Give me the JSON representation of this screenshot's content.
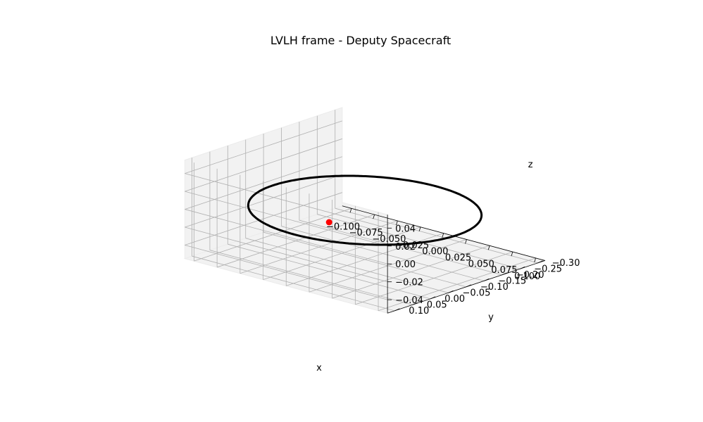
{
  "chart_data": {
    "type": "line",
    "projection": "3d",
    "title": "LVLH frame - Deputy Spacecraft",
    "xlabel": "x",
    "ylabel": "y",
    "zlabel": "z",
    "xlim": [
      -0.11,
      0.11
    ],
    "ylim": [
      -0.32,
      0.12
    ],
    "zlim": [
      -0.055,
      0.055
    ],
    "x_ticks": [
      "−0.100",
      "−0.075",
      "−0.050",
      "−0.025",
      "0.000",
      "0.025",
      "0.050",
      "0.075",
      "0.100"
    ],
    "x_tick_values": [
      -0.1,
      -0.075,
      -0.05,
      -0.025,
      0,
      0.025,
      0.05,
      0.075,
      0.1
    ],
    "y_ticks": [
      "−0.30",
      "−0.25",
      "−0.20",
      "−0.15",
      "−0.10",
      "−0.05",
      "0.00",
      "0.05",
      "0.10"
    ],
    "y_tick_values": [
      -0.3,
      -0.25,
      -0.2,
      -0.15,
      -0.1,
      -0.05,
      0,
      0.05,
      0.1
    ],
    "z_ticks": [
      "−0.04",
      "−0.02",
      "0.00",
      "0.02",
      "0.04"
    ],
    "z_tick_values": [
      -0.04,
      -0.02,
      0,
      0.02,
      0.04
    ],
    "grid": true,
    "series": [
      {
        "kind": "trajectory",
        "color": "#000000",
        "shape": "ellipse",
        "center_x": 0.0,
        "center_y": -0.1,
        "semi_axis_x": 0.1,
        "semi_axis_y": 0.2,
        "z": 0.0
      },
      {
        "kind": "point",
        "color": "#ff0000",
        "x": 0.0,
        "y": 0.0,
        "z": 0.0
      }
    ]
  }
}
